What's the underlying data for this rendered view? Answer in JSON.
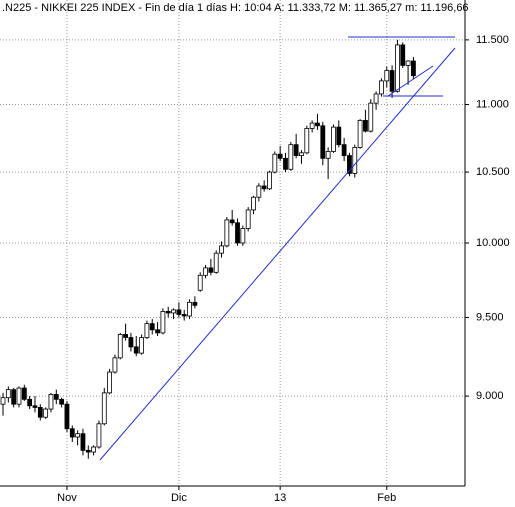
{
  "chart_data": {
    "type": "candlestick",
    "title": ".N225 - NIKKEI 225 INDEX - Fin de día 1 días H: 10:04 A: 11.333,72 M: 11.365,27 m: 11.196,66",
    "log_scale": true,
    "grid": true,
    "color_up": "#ffffff",
    "color_down": "#000000",
    "categories": [
      null,
      null,
      null,
      null,
      null,
      null,
      null,
      null,
      null,
      null,
      null,
      null,
      "Nov",
      null,
      null,
      null,
      null,
      null,
      null,
      null,
      null,
      null,
      null,
      null,
      null,
      null,
      null,
      null,
      null,
      null,
      null,
      null,
      null,
      "Dic",
      null,
      null,
      null,
      null,
      null,
      null,
      null,
      null,
      null,
      null,
      null,
      null,
      null,
      null,
      null,
      null,
      null,
      null,
      "13",
      null,
      null,
      null,
      null,
      null,
      null,
      null,
      null,
      null,
      null,
      null,
      null,
      null,
      null,
      null,
      null,
      null,
      null,
      null,
      "Feb",
      null,
      null,
      null,
      null,
      null
    ],
    "open": [
      8950,
      8990,
      9040,
      8950,
      9050,
      8980,
      8940,
      8930,
      8870,
      8920,
      9010,
      8980,
      8950,
      8800,
      8750,
      8770,
      8670,
      8660,
      8690,
      8830,
      9020,
      9150,
      9240,
      9390,
      9370,
      9310,
      9270,
      9370,
      9460,
      9420,
      9400,
      9540,
      9530,
      9550,
      9520,
      9510,
      9600,
      9680,
      9780,
      9830,
      9800,
      9930,
      9980,
      10160,
      10140,
      10000,
      10100,
      10230,
      10320,
      10400,
      10380,
      10500,
      10630,
      10600,
      10520,
      10700,
      10620,
      10640,
      10820,
      10860,
      10840,
      10600,
      10650,
      10830,
      10700,
      10620,
      10490,
      10680,
      10880,
      10800,
      11010,
      11080,
      11180,
      11260,
      11100,
      11460,
      11300,
      11334
    ],
    "high": [
      9020,
      9060,
      9050,
      9060,
      9070,
      9000,
      9000,
      8950,
      8930,
      9020,
      9040,
      8990,
      8970,
      8820,
      8790,
      8800,
      8700,
      8700,
      8850,
      9050,
      9170,
      9260,
      9400,
      9460,
      9400,
      9380,
      9390,
      9480,
      9490,
      9470,
      9560,
      9570,
      9560,
      9600,
      9550,
      9620,
      9640,
      9800,
      9850,
      9890,
      9950,
      10010,
      10180,
      10230,
      10170,
      10120,
      10250,
      10330,
      10420,
      10440,
      10510,
      10650,
      10690,
      10640,
      10720,
      10780,
      10660,
      10840,
      10880,
      10930,
      10870,
      10680,
      10850,
      10880,
      10750,
      10640,
      10700,
      10890,
      10960,
      11040,
      11100,
      11200,
      11290,
      11300,
      11500,
      11480,
      11340,
      11365
    ],
    "low": [
      8880,
      8960,
      8930,
      8930,
      8970,
      8920,
      8900,
      8850,
      8860,
      8900,
      8950,
      8930,
      8780,
      8720,
      8700,
      8640,
      8620,
      8640,
      8680,
      8820,
      9010,
      9140,
      9230,
      9350,
      9280,
      9250,
      9260,
      9360,
      9390,
      9380,
      9390,
      9500,
      9490,
      9500,
      9480,
      9490,
      9560,
      9670,
      9760,
      9780,
      9790,
      9900,
      9970,
      10120,
      9980,
      9980,
      10080,
      10200,
      10290,
      10360,
      10370,
      10490,
      10580,
      10500,
      10510,
      10600,
      10560,
      10630,
      10790,
      10810,
      10550,
      10450,
      10640,
      10680,
      10580,
      10470,
      10460,
      10670,
      10790,
      10790,
      10960,
      11060,
      11130,
      11050,
      11090,
      11280,
      11150,
      11197
    ],
    "close": [
      8990,
      9040,
      8950,
      9050,
      8980,
      8940,
      8930,
      8870,
      8920,
      9010,
      8980,
      8950,
      8800,
      8750,
      8770,
      8670,
      8660,
      8690,
      8830,
      9020,
      9150,
      9240,
      9390,
      9370,
      9310,
      9270,
      9370,
      9460,
      9420,
      9400,
      9540,
      9530,
      9550,
      9520,
      9510,
      9600,
      9580,
      9780,
      9830,
      9800,
      9930,
      9980,
      10160,
      10140,
      10000,
      10100,
      10230,
      10320,
      10400,
      10380,
      10500,
      10630,
      10600,
      10520,
      10700,
      10620,
      10640,
      10820,
      10860,
      10840,
      10600,
      10650,
      10830,
      10700,
      10620,
      10490,
      10680,
      10880,
      10800,
      11010,
      11080,
      11180,
      11260,
      11100,
      11460,
      11300,
      11334,
      11220
    ],
    "ylim": [
      8460,
      11820
    ],
    "yticks": [
      {
        "value": 9000,
        "label": "9.000"
      },
      {
        "value": 9500,
        "label": "9.500"
      },
      {
        "value": 10000,
        "label": "10.000"
      },
      {
        "value": 10500,
        "label": "10.500"
      },
      {
        "value": 11000,
        "label": "11.000"
      },
      {
        "value": 11500,
        "label": "11.500"
      }
    ]
  }
}
